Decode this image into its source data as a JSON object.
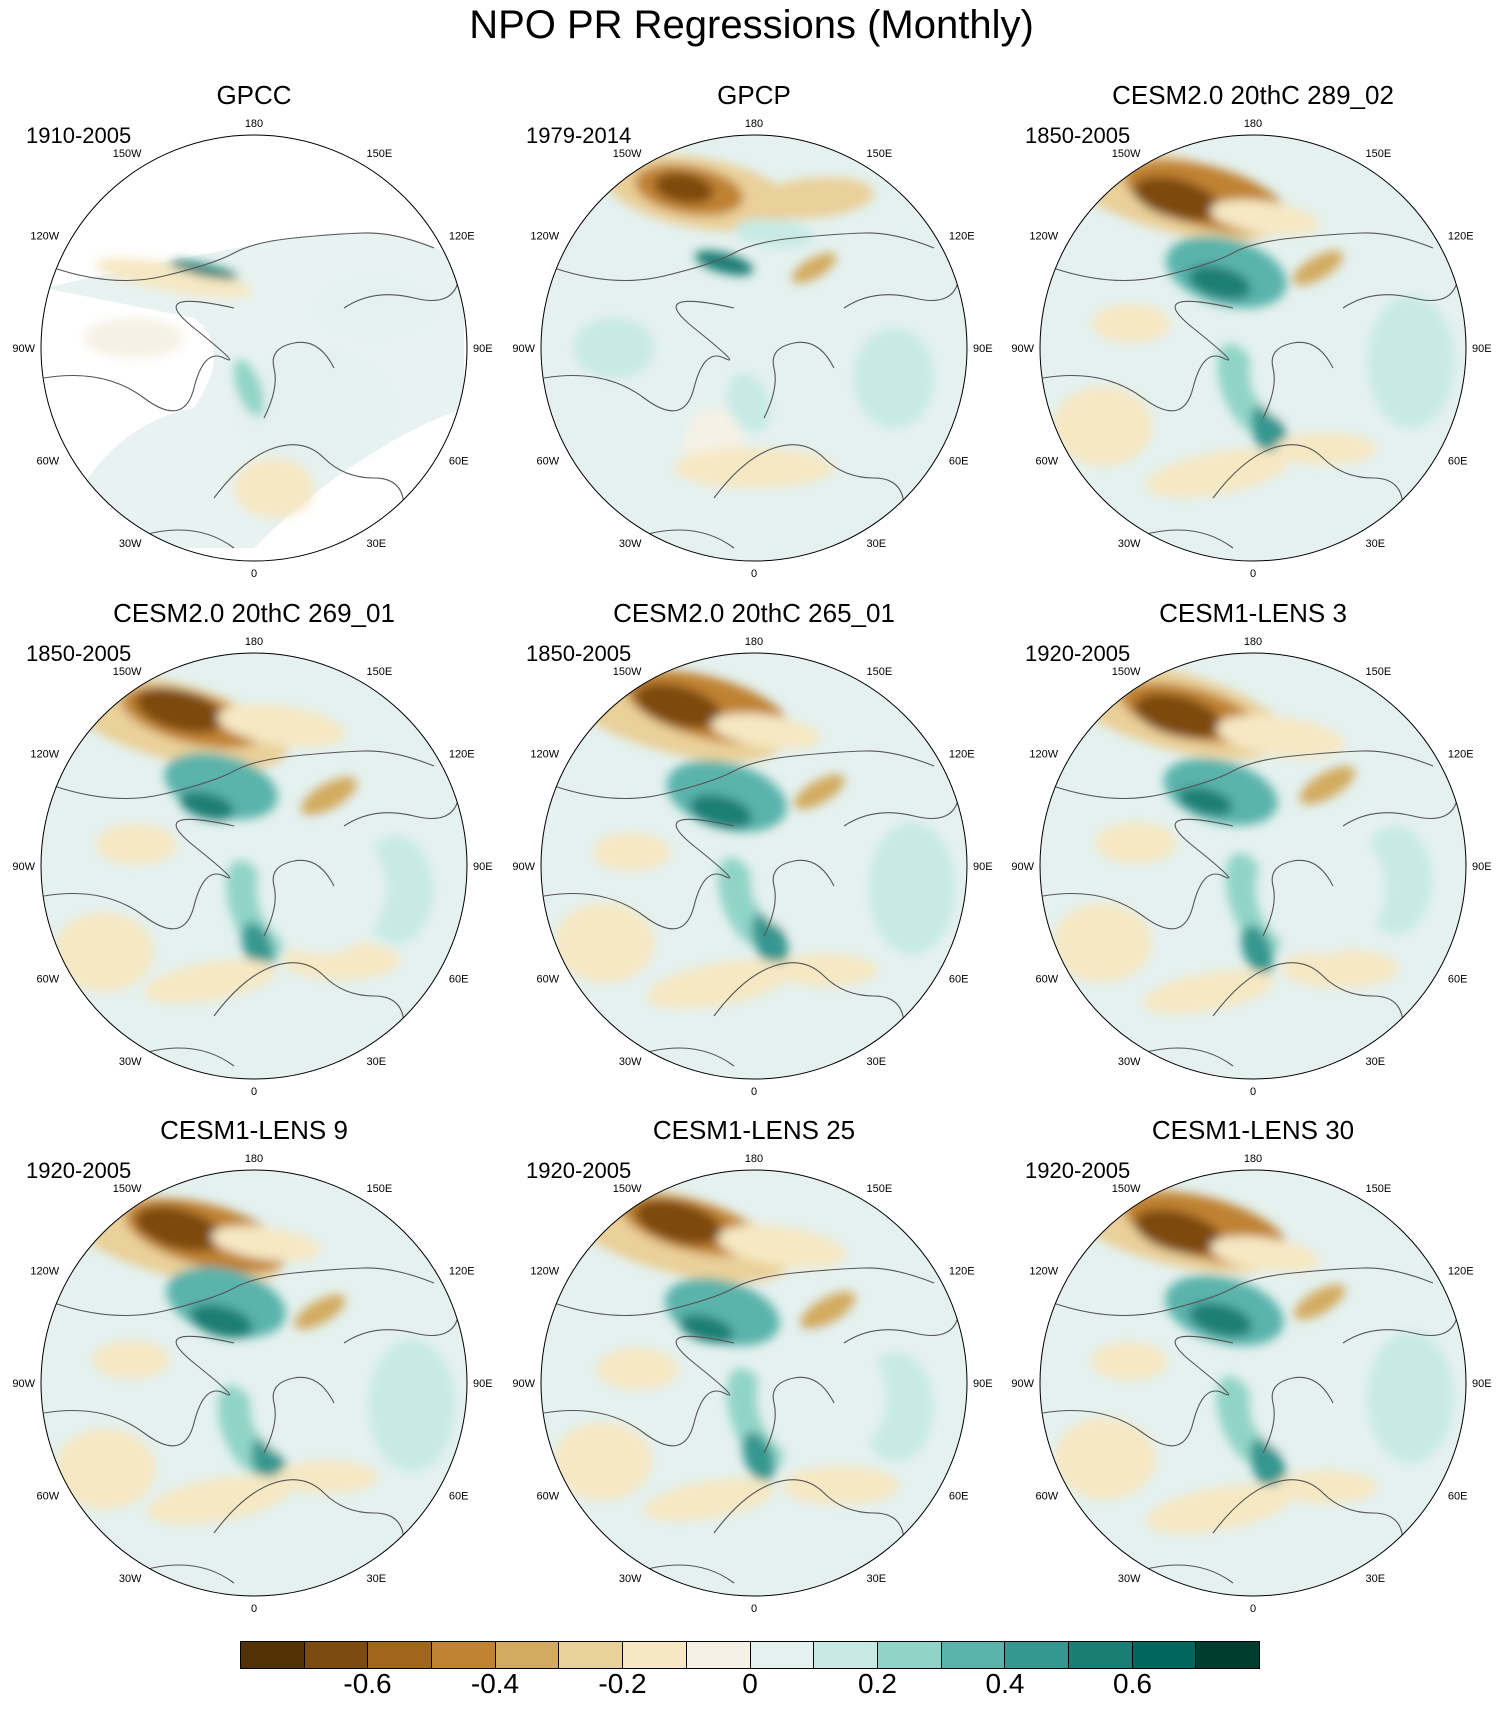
{
  "title": "NPO PR Regressions (Monthly)",
  "panels": [
    {
      "name": "GPCC",
      "period": "1910-2005"
    },
    {
      "name": "GPCP",
      "period": "1979-2014"
    },
    {
      "name": "CESM2.0 20thC 289_02",
      "period": "1850-2005"
    },
    {
      "name": "CESM2.0 20thC 269_01",
      "period": "1850-2005"
    },
    {
      "name": "CESM2.0 20thC 265_01",
      "period": "1850-2005"
    },
    {
      "name": "CESM1-LENS 3",
      "period": "1920-2005"
    },
    {
      "name": "CESM1-LENS 9",
      "period": "1920-2005"
    },
    {
      "name": "CESM1-LENS 25",
      "period": "1920-2005"
    },
    {
      "name": "CESM1-LENS 30",
      "period": "1920-2005"
    }
  ],
  "longitude_labels": [
    "180",
    "150E",
    "120E",
    "90E",
    "60E",
    "30E",
    "0",
    "30W",
    "60W",
    "90W",
    "120W",
    "150W"
  ],
  "colorbar": {
    "colors": [
      "#543005",
      "#7d4a0f",
      "#a0661c",
      "#c08233",
      "#d3ab60",
      "#ead099",
      "#f6e8c3",
      "#f5f1e4",
      "#e4f1ef",
      "#c7eae5",
      "#90d4c8",
      "#5ab4ac",
      "#35978f",
      "#1a7e75",
      "#01665e",
      "#003c30"
    ],
    "tick_labels": [
      "-0.6",
      "-0.4",
      "-0.2",
      "0",
      "0.2",
      "0.4",
      "0.6"
    ]
  }
}
